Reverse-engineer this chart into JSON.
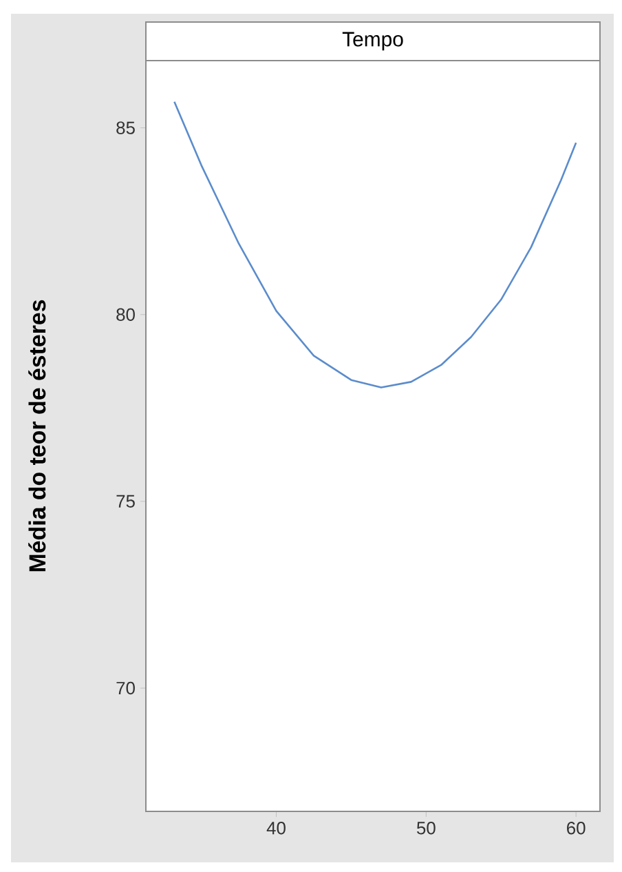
{
  "chart_data": {
    "type": "line",
    "title": "Tempo",
    "ylabel": "Média do teor de ésteres",
    "x": [
      33.2,
      35,
      37.5,
      40,
      42.5,
      45,
      47,
      49,
      51,
      53,
      55,
      57,
      59,
      60
    ],
    "series": [
      {
        "color": "#5b8ccc",
        "values": [
          85.7,
          84.0,
          81.9,
          80.1,
          78.9,
          78.25,
          78.05,
          78.2,
          78.65,
          79.4,
          80.4,
          81.8,
          83.6,
          84.6
        ]
      }
    ],
    "xlim": [
      31.3,
      61.6
    ],
    "ylim": [
      66.7,
      86.8
    ],
    "xticks": [
      40,
      50,
      60
    ],
    "yticks": [
      70,
      75,
      80,
      85
    ],
    "grid": false,
    "marker": "none",
    "line_style": "solid"
  }
}
